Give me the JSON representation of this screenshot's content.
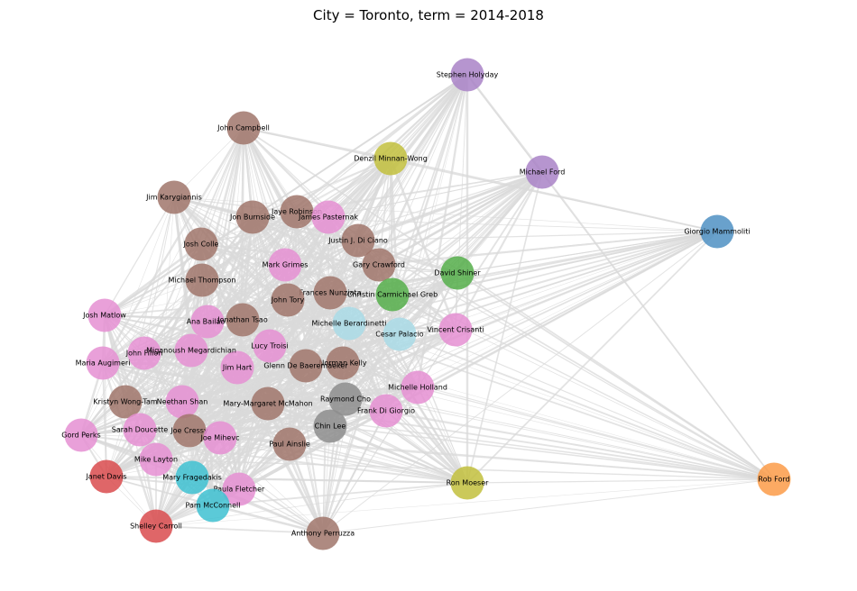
{
  "title": "City = Toronto, term = 2014-2018",
  "palette": {
    "brown": "#a0756b",
    "pink": "#e58fd2",
    "purple": "#a982c7",
    "olive": "#c2c03d",
    "green": "#55ae4a",
    "blue": "#4f91c3",
    "orange": "#fb9b48",
    "red": "#d94b4d",
    "cyan": "#3ec1d1",
    "lightblue": "#a9dbe6",
    "gray": "#8d8d8d"
  },
  "edge_color": "#d9d9d9",
  "nodes": [
    {
      "name": "Stephen Holyday",
      "color": "purple"
    },
    {
      "name": "John Campbell",
      "color": "brown"
    },
    {
      "name": "Denzil Minnan-Wong",
      "color": "olive"
    },
    {
      "name": "Michael Ford",
      "color": "purple"
    },
    {
      "name": "Jim Karygiannis",
      "color": "brown"
    },
    {
      "name": "Jaye Robinson",
      "color": "brown"
    },
    {
      "name": "Jon Burnside",
      "color": "brown"
    },
    {
      "name": "James Pasternak",
      "color": "pink"
    },
    {
      "name": "Giorgio Mammoliti",
      "color": "blue"
    },
    {
      "name": "Josh Colle",
      "color": "brown"
    },
    {
      "name": "Justin J. Di Ciano",
      "color": "brown"
    },
    {
      "name": "Mark Grimes",
      "color": "pink"
    },
    {
      "name": "Gary Crawford",
      "color": "brown"
    },
    {
      "name": "David Shiner",
      "color": "green"
    },
    {
      "name": "Michael Thompson",
      "color": "brown"
    },
    {
      "name": "Frances Nunziata",
      "color": "brown"
    },
    {
      "name": "Christin Carmichael Greb",
      "color": "green"
    },
    {
      "name": "John Tory",
      "color": "brown"
    },
    {
      "name": "Josh Matlow",
      "color": "pink"
    },
    {
      "name": "Ana Bailão",
      "color": "pink"
    },
    {
      "name": "Jonathan Tsao",
      "color": "brown"
    },
    {
      "name": "Michelle Berardinetti",
      "color": "lightblue"
    },
    {
      "name": "Cesar Palacio",
      "color": "lightblue"
    },
    {
      "name": "Vincent Crisanti",
      "color": "pink"
    },
    {
      "name": "Lucy Troisi",
      "color": "pink"
    },
    {
      "name": "John Filion",
      "color": "pink"
    },
    {
      "name": "Shelley Carroll",
      "color": "red"
    },
    {
      "name": "Maria Augimeri",
      "color": "pink"
    },
    {
      "name": "Norman Kelly",
      "color": "brown"
    },
    {
      "name": "Glenn De Baeremaeker",
      "color": "brown"
    },
    {
      "name": "Jim Hart",
      "color": "pink"
    },
    {
      "name": "Michelle Holland",
      "color": "pink"
    },
    {
      "name": "Kristyn Wong-Tam",
      "color": "brown"
    },
    {
      "name": "Neethan Shan",
      "color": "pink"
    },
    {
      "name": "Mary-Margaret McMahon",
      "color": "brown"
    },
    {
      "name": "Raymond Cho",
      "color": "gray"
    },
    {
      "name": "Frank Di Giorgio",
      "color": "pink"
    },
    {
      "name": "Gord Perks",
      "color": "pink"
    },
    {
      "name": "Sarah Doucette",
      "color": "pink"
    },
    {
      "name": "Joe Cressy",
      "color": "brown"
    },
    {
      "name": "Joe Mihevc",
      "color": "pink"
    },
    {
      "name": "Chin Lee",
      "color": "gray"
    },
    {
      "name": "Paul Ainslie",
      "color": "brown"
    },
    {
      "name": "Mike Layton",
      "color": "pink"
    },
    {
      "name": "Janet Davis",
      "color": "red"
    },
    {
      "name": "Mary Fragedakis",
      "color": "cyan"
    },
    {
      "name": "Ron Moeser",
      "color": "olive"
    },
    {
      "name": "Rob Ford",
      "color": "orange"
    },
    {
      "name": "Paula Fletcher",
      "color": "pink"
    },
    {
      "name": "Pam McConnell",
      "color": "cyan"
    },
    {
      "name": "Anthony Perruzza",
      "color": "brown"
    },
    {
      "name": "Miganoush Megardichian",
      "color": "pink"
    }
  ]
}
